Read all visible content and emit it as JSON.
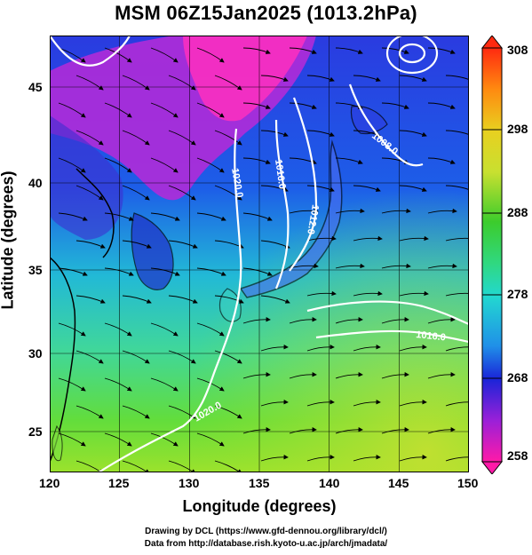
{
  "title": "MSM 06Z15Jan2025 (1013.2hPa)",
  "xaxis": {
    "label": "Longitude (degrees)",
    "range": [
      120,
      150
    ],
    "ticks": [
      "120",
      "125",
      "130",
      "135",
      "140",
      "145",
      "150"
    ]
  },
  "yaxis": {
    "label": "Latitude  (degrees)",
    "range": [
      22.5,
      47.6
    ],
    "ticks": [
      "25",
      "30",
      "35",
      "40",
      "45"
    ]
  },
  "colorbar": {
    "labels": [
      "308",
      "298",
      "288",
      "278",
      "268",
      "258"
    ],
    "range": [
      258,
      308
    ],
    "colors": {
      "low": "#ff1aa8",
      "mid_low": "#1a24d8",
      "mid": "#22d8d0",
      "mid_high": "#3ccc2c",
      "high_mid": "#e8e82a",
      "high": "#ff2a10"
    }
  },
  "isobars": [
    {
      "label": "1020.0"
    },
    {
      "label": "1016.0"
    },
    {
      "label": "1012.0"
    },
    {
      "label": "1008.0"
    },
    {
      "label": "1016.0"
    },
    {
      "label": "1020.0"
    }
  ],
  "footer": {
    "line1": "Drawing by DCL (https://www.gfd-dennou.org/library/dcl/)",
    "line2": "Data from http://database.rish.kyoto-u.ac.jp/arch/jmadata/"
  }
}
